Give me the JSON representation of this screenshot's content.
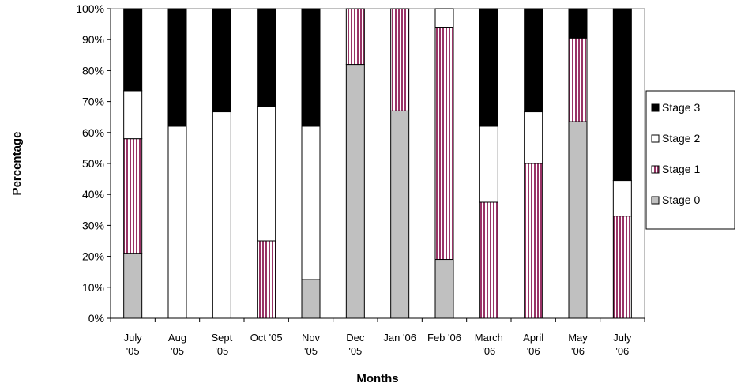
{
  "chart_data": {
    "type": "bar",
    "stacked": true,
    "percent": true,
    "xlabel": "Months",
    "ylabel": "Percentage",
    "ylim": [
      0,
      100
    ],
    "yticks": [
      "0%",
      "10%",
      "20%",
      "30%",
      "40%",
      "50%",
      "60%",
      "70%",
      "80%",
      "90%",
      "100%"
    ],
    "categories": [
      [
        "July",
        "'05"
      ],
      [
        "Aug",
        "'05"
      ],
      [
        "Sept",
        "'05"
      ],
      [
        "Oct '05"
      ],
      [
        "Nov",
        "'05"
      ],
      [
        "Dec",
        "'05"
      ],
      [
        "Jan '06"
      ],
      [
        "Feb '06"
      ],
      [
        "March",
        "'06"
      ],
      [
        "April",
        "'06"
      ],
      [
        "May",
        "'06"
      ],
      [
        "July",
        "'06"
      ]
    ],
    "series": [
      {
        "name": "Stage 0",
        "color": "#c0c0c0",
        "pattern": "solid",
        "values": [
          21,
          0,
          0,
          0,
          12.5,
          82,
          67,
          19,
          0,
          0,
          63.5,
          0
        ]
      },
      {
        "name": "Stage 1",
        "color": "#993366",
        "pattern": "vertical-stripes",
        "values": [
          37,
          0,
          0,
          25,
          0,
          18,
          33,
          75,
          37.5,
          50,
          27,
          33
        ]
      },
      {
        "name": "Stage 2",
        "color": "#ffffff",
        "pattern": "solid",
        "values": [
          15.5,
          62,
          66.7,
          43.5,
          49.5,
          0,
          0,
          6,
          24.5,
          16.7,
          0,
          11.5
        ]
      },
      {
        "name": "Stage 3",
        "color": "#000000",
        "pattern": "solid",
        "values": [
          26.5,
          38,
          33.3,
          31.5,
          38,
          0,
          0,
          0,
          38,
          33.3,
          9.5,
          55.5
        ]
      }
    ],
    "legend": {
      "placement": "right",
      "order": [
        "Stage 3",
        "Stage 2",
        "Stage 1",
        "Stage 0"
      ]
    }
  }
}
